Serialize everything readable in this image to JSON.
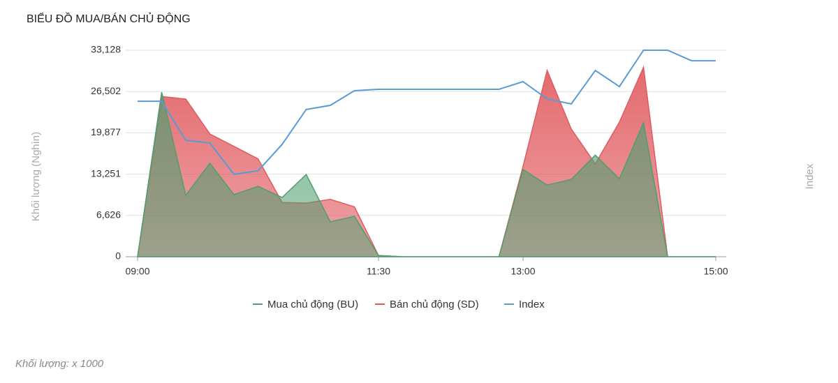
{
  "chart_data": {
    "type": "area",
    "title": "BIỂU ĐỒ MUA/BÁN CHỦ ĐỘNG",
    "y_label": "Khối lượng (Nghìn)",
    "y2_label": "Index",
    "footnote": "Khối lượng: x 1000",
    "categories": [
      "09:00",
      null,
      null,
      null,
      null,
      null,
      null,
      null,
      null,
      null,
      "11:30",
      null,
      null,
      null,
      null,
      null,
      "13:00",
      null,
      null,
      null,
      null,
      null,
      null,
      null,
      "15:00"
    ],
    "ylim": [
      0,
      33128
    ],
    "yticks": [
      0,
      {
        "value": 6626,
        "label": "6,626"
      },
      {
        "value": 13251,
        "label": "13,251"
      },
      {
        "value": 19877,
        "label": "19,877"
      },
      {
        "value": 26502,
        "label": "26,502"
      },
      {
        "value": 33128,
        "label": "33,128"
      }
    ],
    "y2lim": [
      0,
      100
    ],
    "grid": true,
    "legend": "bottom",
    "series": [
      {
        "name": "Bán chủ động (SD)",
        "type": "area",
        "color": "#e05a5f",
        "values": [
          0,
          25700,
          25300,
          19700,
          17700,
          15700,
          8700,
          8600,
          9200,
          8000,
          200,
          0,
          0,
          0,
          0,
          0,
          14500,
          29900,
          20500,
          14900,
          21600,
          30400,
          0,
          0,
          0
        ]
      },
      {
        "name": "Mua chủ động (BU)",
        "type": "area",
        "color": "#4f9e70",
        "values": [
          0,
          26400,
          9850,
          15000,
          9960,
          11300,
          9500,
          13200,
          5600,
          6500,
          200,
          0,
          0,
          0,
          0,
          0,
          14000,
          11500,
          12400,
          16300,
          12500,
          21500,
          0,
          0,
          0
        ]
      },
      {
        "name": "Index",
        "type": "line",
        "axis": "y2",
        "color": "#5b9bd5",
        "values": [
          75.3,
          75.3,
          56.4,
          55.1,
          39.9,
          41.6,
          54.4,
          71.3,
          73.3,
          80.4,
          81.1,
          81.1,
          81.1,
          81.1,
          81.1,
          81.1,
          84.8,
          76.4,
          74.0,
          90.2,
          82.4,
          100,
          100,
          94.9,
          94.9
        ]
      }
    ]
  }
}
